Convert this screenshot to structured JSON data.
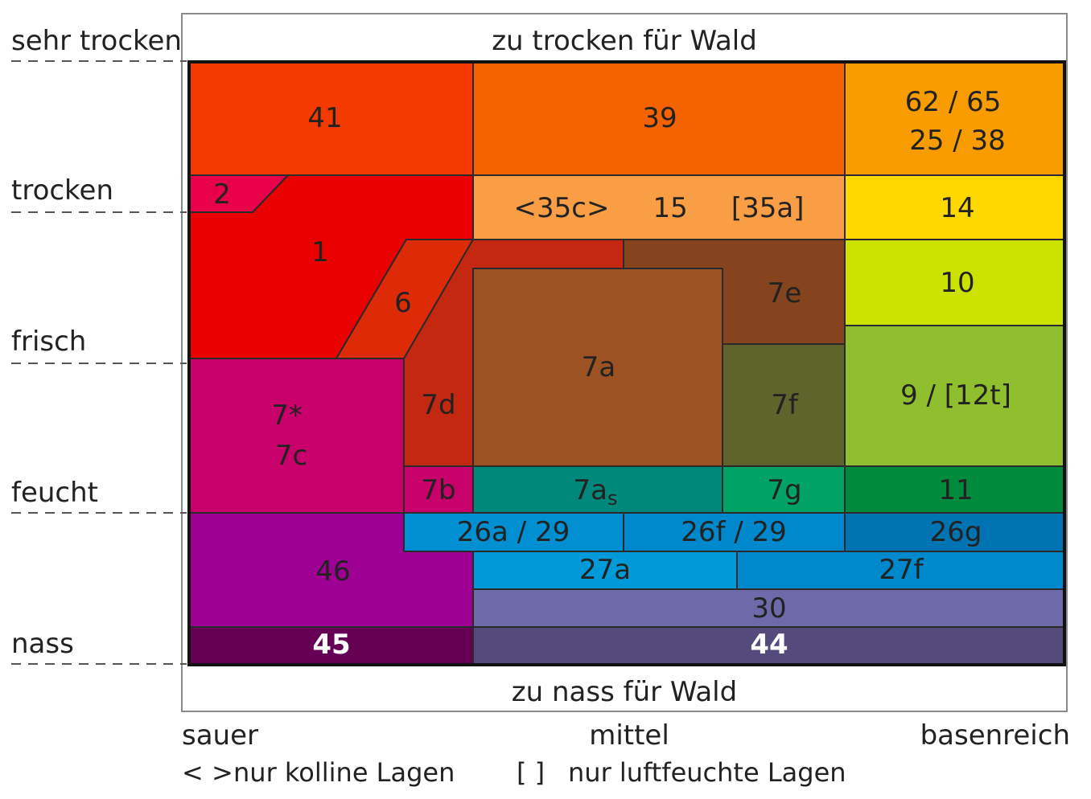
{
  "moisture_axis": {
    "levels": [
      "sehr trocken",
      "trocken",
      "frisch",
      "feucht",
      "nass"
    ]
  },
  "top_note": "zu trocken für Wald",
  "bottom_note": "zu nass für Wald",
  "acidity_axis": {
    "left": "sauer",
    "middle": "mittel",
    "right": "basenreich"
  },
  "legend": {
    "angle_brackets": "< >",
    "angle_text": "nur kolline Lagen",
    "square_brackets": "[ ]",
    "square_text": "nur luftfeuchte Lagen"
  },
  "zones": [
    {
      "id": "41",
      "lines": [
        "41"
      ],
      "color": "#F53A00"
    },
    {
      "id": "39",
      "lines": [
        "39"
      ],
      "color": "#F56300"
    },
    {
      "id": "62-65-25-38",
      "lines": [
        "62 / 65",
        "25 / 38"
      ],
      "color": "#F89C00"
    },
    {
      "id": "2",
      "lines": [
        "2"
      ],
      "color": "#E8004A"
    },
    {
      "id": "1",
      "lines": [
        "1"
      ],
      "color": "#EA0000"
    },
    {
      "id": "35c-15-35a",
      "lines": [
        "<35c>     15     [35a]"
      ],
      "color": "#FA9E45"
    },
    {
      "id": "14",
      "lines": [
        "14"
      ],
      "color": "#FFD800"
    },
    {
      "id": "6",
      "lines": [
        "6"
      ],
      "color": "#DD2B08"
    },
    {
      "id": "7d",
      "lines": [
        "7d"
      ],
      "color": "#C42810"
    },
    {
      "id": "7a",
      "lines": [
        "7a"
      ],
      "color": "#9C5222"
    },
    {
      "id": "7e",
      "lines": [
        "7e"
      ],
      "color": "#85431E"
    },
    {
      "id": "10",
      "lines": [
        "10"
      ],
      "color": "#CCE200"
    },
    {
      "id": "7f",
      "lines": [
        "7f"
      ],
      "color": "#5E642C"
    },
    {
      "id": "9-12t",
      "lines": [
        "9 / [12t]"
      ],
      "color": "#8FBF2E"
    },
    {
      "id": "7star-7c",
      "lines": [
        "7*",
        "7c"
      ],
      "color": "#C8006A"
    },
    {
      "id": "7b",
      "lines": [
        "7b"
      ],
      "color": "#C8006A"
    },
    {
      "id": "7as",
      "lines": [
        "7as"
      ],
      "color": "#00897A"
    },
    {
      "id": "7g",
      "lines": [
        "7g"
      ],
      "color": "#00A266"
    },
    {
      "id": "11",
      "lines": [
        "11"
      ],
      "color": "#008A3C"
    },
    {
      "id": "26a-29",
      "lines": [
        "26a / 29"
      ],
      "color": "#0090D2"
    },
    {
      "id": "26f-29",
      "lines": [
        "26f / 29"
      ],
      "color": "#0088CC"
    },
    {
      "id": "26g",
      "lines": [
        "26g"
      ],
      "color": "#0073B2"
    },
    {
      "id": "46",
      "lines": [
        "46"
      ],
      "color": "#9E0094"
    },
    {
      "id": "27a",
      "lines": [
        "27a"
      ],
      "color": "#009AD8"
    },
    {
      "id": "27f",
      "lines": [
        "27f"
      ],
      "color": "#0088CC"
    },
    {
      "id": "30",
      "lines": [
        "30"
      ],
      "color": "#6D6AAA"
    },
    {
      "id": "45",
      "lines": [
        "45"
      ],
      "color": "#650055"
    },
    {
      "id": "44",
      "lines": [
        "44"
      ],
      "color": "#544A7C"
    }
  ]
}
